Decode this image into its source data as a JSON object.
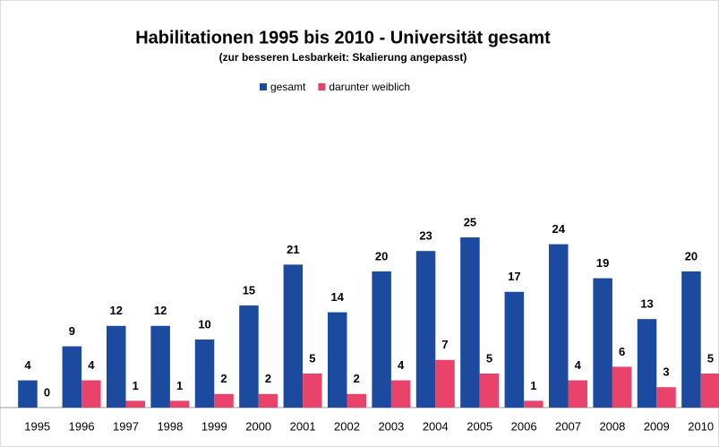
{
  "chart_data": {
    "type": "bar",
    "title": "Habilitationen 1995 bis 2010 - Universität gesamt",
    "subtitle": "(zur besseren Lesbarkeit: Skalierung angepasst)",
    "categories": [
      "1995",
      "1996",
      "1997",
      "1998",
      "1999",
      "2000",
      "2001",
      "2002",
      "2003",
      "2004",
      "2005",
      "2006",
      "2007",
      "2008",
      "2009",
      "2010"
    ],
    "series": [
      {
        "name": "gesamt",
        "color": "#1b4a9e",
        "values": [
          4,
          9,
          12,
          12,
          10,
          15,
          21,
          14,
          20,
          23,
          25,
          17,
          24,
          19,
          13,
          20
        ]
      },
      {
        "name": "darunter weiblich",
        "color": "#e9436b",
        "values": [
          0,
          4,
          1,
          1,
          2,
          2,
          5,
          2,
          4,
          7,
          5,
          1,
          4,
          6,
          3,
          5
        ]
      }
    ],
    "legend": "top"
  }
}
